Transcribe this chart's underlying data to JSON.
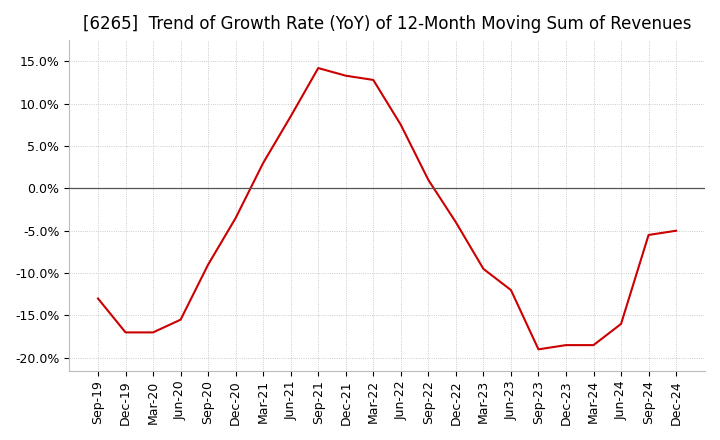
{
  "title": "[6265]  Trend of Growth Rate (YoY) of 12-Month Moving Sum of Revenues",
  "title_fontsize": 12,
  "tick_fontsize": 9,
  "ylim": [
    -0.215,
    0.175
  ],
  "yticks": [
    -0.2,
    -0.15,
    -0.1,
    -0.05,
    0.0,
    0.05,
    0.1,
    0.15
  ],
  "line_color": "#cc0000",
  "bg_color": "#ffffff",
  "grid_color": "#bbbbbb",
  "zero_line_color": "#555555",
  "dates": [
    "Sep-19",
    "Dec-19",
    "Mar-20",
    "Jun-20",
    "Sep-20",
    "Dec-20",
    "Mar-21",
    "Jun-21",
    "Sep-21",
    "Dec-21",
    "Mar-22",
    "Jun-22",
    "Sep-22",
    "Dec-22",
    "Mar-23",
    "Jun-23",
    "Sep-23",
    "Dec-23",
    "Mar-24",
    "Jun-24",
    "Sep-24",
    "Dec-24"
  ],
  "values": [
    -0.13,
    -0.17,
    -0.17,
    -0.155,
    -0.09,
    -0.035,
    0.03,
    0.085,
    0.142,
    0.133,
    0.128,
    0.075,
    0.01,
    -0.04,
    -0.095,
    -0.12,
    -0.19,
    -0.185,
    -0.185,
    -0.16,
    -0.055,
    -0.05
  ]
}
